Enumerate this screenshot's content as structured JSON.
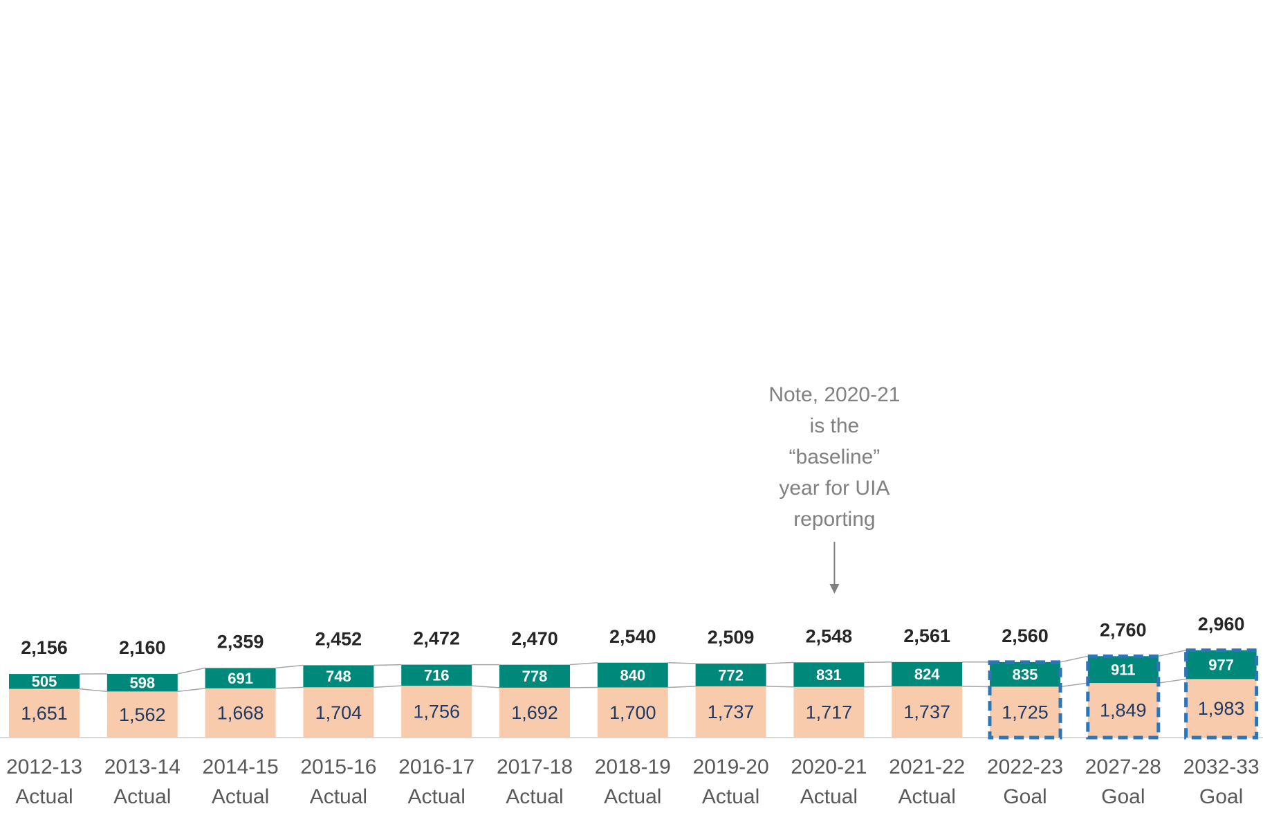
{
  "chart_data": {
    "type": "stacked_bar",
    "categories": [
      [
        "2012-13",
        "Actual"
      ],
      [
        "2013-14",
        "Actual"
      ],
      [
        "2014-15",
        "Actual"
      ],
      [
        "2015-16",
        "Actual"
      ],
      [
        "2016-17",
        "Actual"
      ],
      [
        "2017-18",
        "Actual"
      ],
      [
        "2018-19",
        "Actual"
      ],
      [
        "2019-20",
        "Actual"
      ],
      [
        "2020-21",
        "Actual"
      ],
      [
        "2021-22",
        "Actual"
      ],
      [
        "2022-23",
        "Goal"
      ],
      [
        "2027-28",
        "Goal"
      ],
      [
        "2032-33",
        "Goal"
      ]
    ],
    "series": [
      {
        "color": "#f8cbad",
        "label_color": "#1f3864",
        "values": [
          1651,
          1562,
          1668,
          1704,
          1756,
          1692,
          1700,
          1737,
          1717,
          1737,
          1725,
          1849,
          1983
        ],
        "value_labels": [
          "1,651",
          "1,562",
          "1,668",
          "1,704",
          "1,756",
          "1,692",
          "1,700",
          "1,737",
          "1,717",
          "1,737",
          "1,725",
          "1,849",
          "1,983"
        ]
      },
      {
        "color": "#00897b",
        "label_color": "#ffffff",
        "values": [
          505,
          598,
          691,
          748,
          716,
          778,
          840,
          772,
          831,
          824,
          835,
          911,
          977
        ]
      }
    ],
    "totals": [
      2156,
      2160,
      2359,
      2452,
      2472,
      2470,
      2540,
      2509,
      2548,
      2561,
      2560,
      2760,
      2960
    ],
    "total_labels": [
      "2,156",
      "2,160",
      "2,359",
      "2,452",
      "2,472",
      "2,470",
      "2,540",
      "2,509",
      "2,548",
      "2,561",
      "2,560",
      "2,760",
      "2,960"
    ],
    "ylim": [
      0,
      25000
    ],
    "outline": {
      "color": "#2e75b6",
      "style": "dashed",
      "categories": [
        10,
        11,
        12
      ]
    },
    "annotation": {
      "category": 8,
      "lines": [
        "Note, 2020-21",
        "is the",
        "“baseline”",
        "year for UIA",
        "reporting"
      ]
    }
  }
}
